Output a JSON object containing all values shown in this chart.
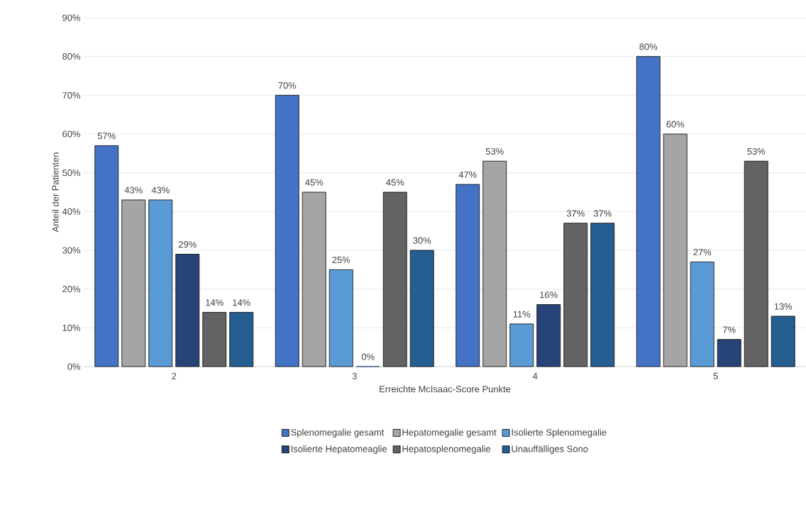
{
  "chart_data": {
    "type": "bar",
    "xlabel": "Erreichte McIsaac-Score Punkte",
    "ylabel": "Anteil der Patienten",
    "categories": [
      "2",
      "3",
      "4",
      "5"
    ],
    "series": [
      {
        "name": "Splenomegalie gesamt",
        "color": "#4472c4",
        "values": [
          57,
          70,
          47,
          80
        ],
        "value_labels": [
          "57%",
          "70%",
          "47%",
          "80%"
        ]
      },
      {
        "name": "Hepatomegalie gesamt",
        "color": "#a5a5a5",
        "values": [
          43,
          45,
          53,
          60
        ],
        "value_labels": [
          "43%",
          "45%",
          "53%",
          "60%"
        ]
      },
      {
        "name": "Isolierte Splenomegalie",
        "color": "#5b9bd5",
        "values": [
          43,
          25,
          11,
          27
        ],
        "value_labels": [
          "43%",
          "25%",
          "11%",
          "27%"
        ]
      },
      {
        "name": "Isolierte Hepatomeaglie",
        "color": "#264478",
        "values": [
          29,
          0,
          16,
          7
        ],
        "value_labels": [
          "29%",
          "0%",
          "16%",
          "7%"
        ]
      },
      {
        "name": "Hepatosplenomegalie",
        "color": "#636363",
        "values": [
          14,
          45,
          37,
          53
        ],
        "value_labels": [
          "14%",
          "45%",
          "37%",
          "53%"
        ]
      },
      {
        "name": "Unauffälliges Sono",
        "color": "#255e91",
        "values": [
          14,
          30,
          37,
          13
        ],
        "value_labels": [
          "14%",
          "30%",
          "37%",
          "13%"
        ]
      }
    ],
    "ylim": [
      0,
      90
    ],
    "yticks": [
      {
        "value": 0,
        "label": "0%"
      },
      {
        "value": 10,
        "label": "10%"
      },
      {
        "value": 20,
        "label": "20%"
      },
      {
        "value": 30,
        "label": "30%"
      },
      {
        "value": 40,
        "label": "40%"
      },
      {
        "value": 50,
        "label": "50%"
      },
      {
        "value": 60,
        "label": "60%"
      },
      {
        "value": 70,
        "label": "70%"
      },
      {
        "value": 80,
        "label": "80%"
      },
      {
        "value": 90,
        "label": "90%"
      }
    ],
    "grid": "y",
    "legend": "bottom"
  }
}
